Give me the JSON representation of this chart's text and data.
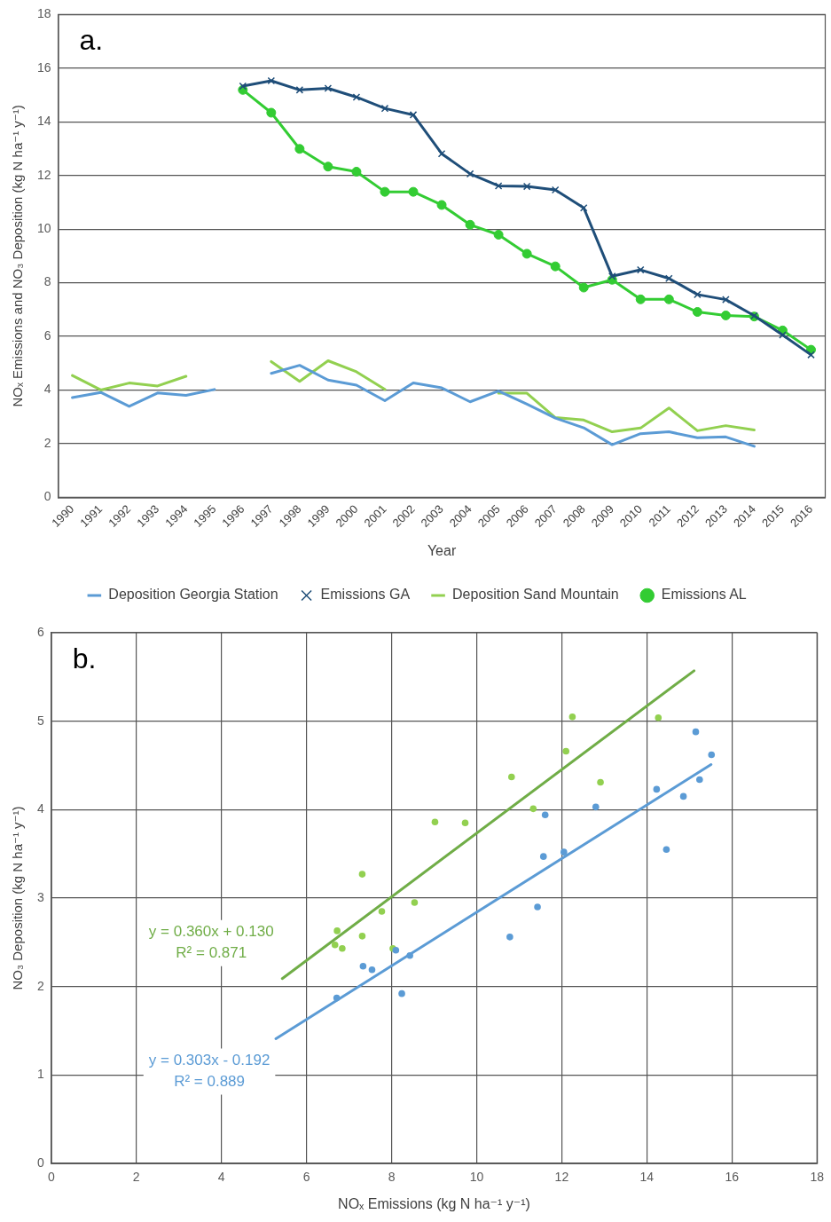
{
  "chart_data": [
    {
      "type": "line",
      "title": "a.",
      "xlabel": "Year",
      "ylabel": "NOₓ Emissions and NO₃ Deposition (kg N ha⁻¹ y⁻¹)",
      "categories": [
        "1990",
        "1991",
        "1992",
        "1993",
        "1994",
        "1995",
        "1996",
        "1997",
        "1998",
        "1999",
        "2000",
        "2001",
        "2002",
        "2003",
        "2004",
        "2005",
        "2006",
        "2007",
        "2008",
        "2009",
        "2010",
        "2011",
        "2012",
        "2013",
        "2014",
        "2015",
        "2016"
      ],
      "series": [
        {
          "name": "Deposition Georgia Station",
          "color": "#5b9bd5",
          "values": [
            3.72,
            3.91,
            3.39,
            3.89,
            3.8,
            4.02,
            null,
            4.62,
            4.92,
            4.37,
            4.18,
            3.6,
            4.26,
            4.08,
            3.56,
            3.96,
            3.47,
            2.95,
            2.59,
            1.96,
            2.37,
            2.44,
            2.22,
            2.25,
            1.9,
            null,
            null
          ]
        },
        {
          "name": "Emissions GA",
          "color": "#1f4e79",
          "marker": "cross",
          "values": [
            null,
            null,
            null,
            null,
            null,
            null,
            15.33,
            15.53,
            15.19,
            15.25,
            14.92,
            14.5,
            14.26,
            12.81,
            12.06,
            11.61,
            11.59,
            11.46,
            10.79,
            8.24,
            8.48,
            8.16,
            7.56,
            7.37,
            6.77,
            6.05,
            5.31
          ]
        },
        {
          "name": "Deposition Sand Mountain",
          "color": "#92d050",
          "values": [
            4.54,
            4.0,
            4.26,
            4.15,
            4.51,
            null,
            null,
            5.06,
            4.32,
            5.09,
            4.68,
            4.02,
            null,
            null,
            null,
            3.88,
            3.88,
            2.97,
            2.88,
            2.44,
            2.58,
            3.33,
            2.48,
            2.67,
            2.51,
            null,
            null
          ]
        },
        {
          "name": "Emissions AL",
          "color": "#33cc33",
          "marker": "circle",
          "values": [
            null,
            null,
            null,
            null,
            null,
            null,
            15.19,
            14.34,
            12.99,
            12.33,
            12.14,
            11.39,
            11.39,
            10.9,
            10.16,
            9.79,
            9.08,
            8.61,
            7.82,
            8.11,
            7.38,
            7.38,
            6.91,
            6.78,
            6.74,
            6.22,
            5.5
          ]
        }
      ],
      "ylim": [
        0,
        18
      ],
      "yticks": [
        0,
        2,
        4,
        6,
        8,
        10,
        12,
        14,
        16,
        18
      ],
      "grid": "y",
      "legend": "bottom"
    },
    {
      "type": "scatter",
      "title": "b.",
      "xlabel": "NOₓ Emissions (kg N ha⁻¹ y⁻¹)",
      "ylabel": "NO₃ Deposition (kg N ha⁻¹ y⁻¹)",
      "series": [
        {
          "color": "#5b9bd5",
          "marker": "circle",
          "x": [
            15.52,
            15.15,
            15.24,
            14.86,
            14.46,
            14.23,
            12.8,
            12.05,
            11.61,
            11.57,
            11.43,
            10.78,
            8.24,
            8.43,
            8.1,
            7.54,
            7.33,
            6.71
          ],
          "values": [
            4.62,
            4.88,
            4.34,
            4.15,
            3.55,
            4.23,
            4.03,
            3.52,
            3.94,
            3.47,
            2.9,
            2.56,
            1.92,
            2.35,
            2.41,
            2.19,
            2.23,
            1.87
          ]
        },
        {
          "color": "#92d050",
          "marker": "circle",
          "x": [
            14.27,
            12.91,
            12.25,
            12.1,
            11.33,
            10.82,
            9.73,
            9.02,
            8.54,
            7.77,
            8.03,
            7.31,
            7.31,
            6.84,
            6.72,
            6.67
          ],
          "values": [
            5.04,
            4.31,
            5.05,
            4.66,
            4.01,
            4.37,
            3.85,
            3.86,
            2.95,
            2.85,
            2.43,
            2.57,
            3.27,
            2.43,
            2.63,
            2.47
          ]
        },
        {
          "type": "line",
          "name": "y = 0.360x + 0.130\nR² = 0.871",
          "color": "#70ad47",
          "x": [
            5.43,
            15.11
          ],
          "values": [
            2.09,
            5.57
          ]
        },
        {
          "type": "line",
          "name": "y = 0.303x - 0.192\nR² = 0.889",
          "color": "#5b9bd5",
          "x": [
            5.28,
            15.51
          ],
          "values": [
            1.41,
            4.51
          ]
        }
      ],
      "xlim": [
        0,
        18
      ],
      "xticks": [
        0,
        2,
        4,
        6,
        8,
        10,
        12,
        14,
        16,
        18
      ],
      "ylim": [
        0,
        6
      ],
      "yticks": [
        0,
        1,
        2,
        3,
        4,
        5,
        6
      ],
      "grid": true
    }
  ]
}
